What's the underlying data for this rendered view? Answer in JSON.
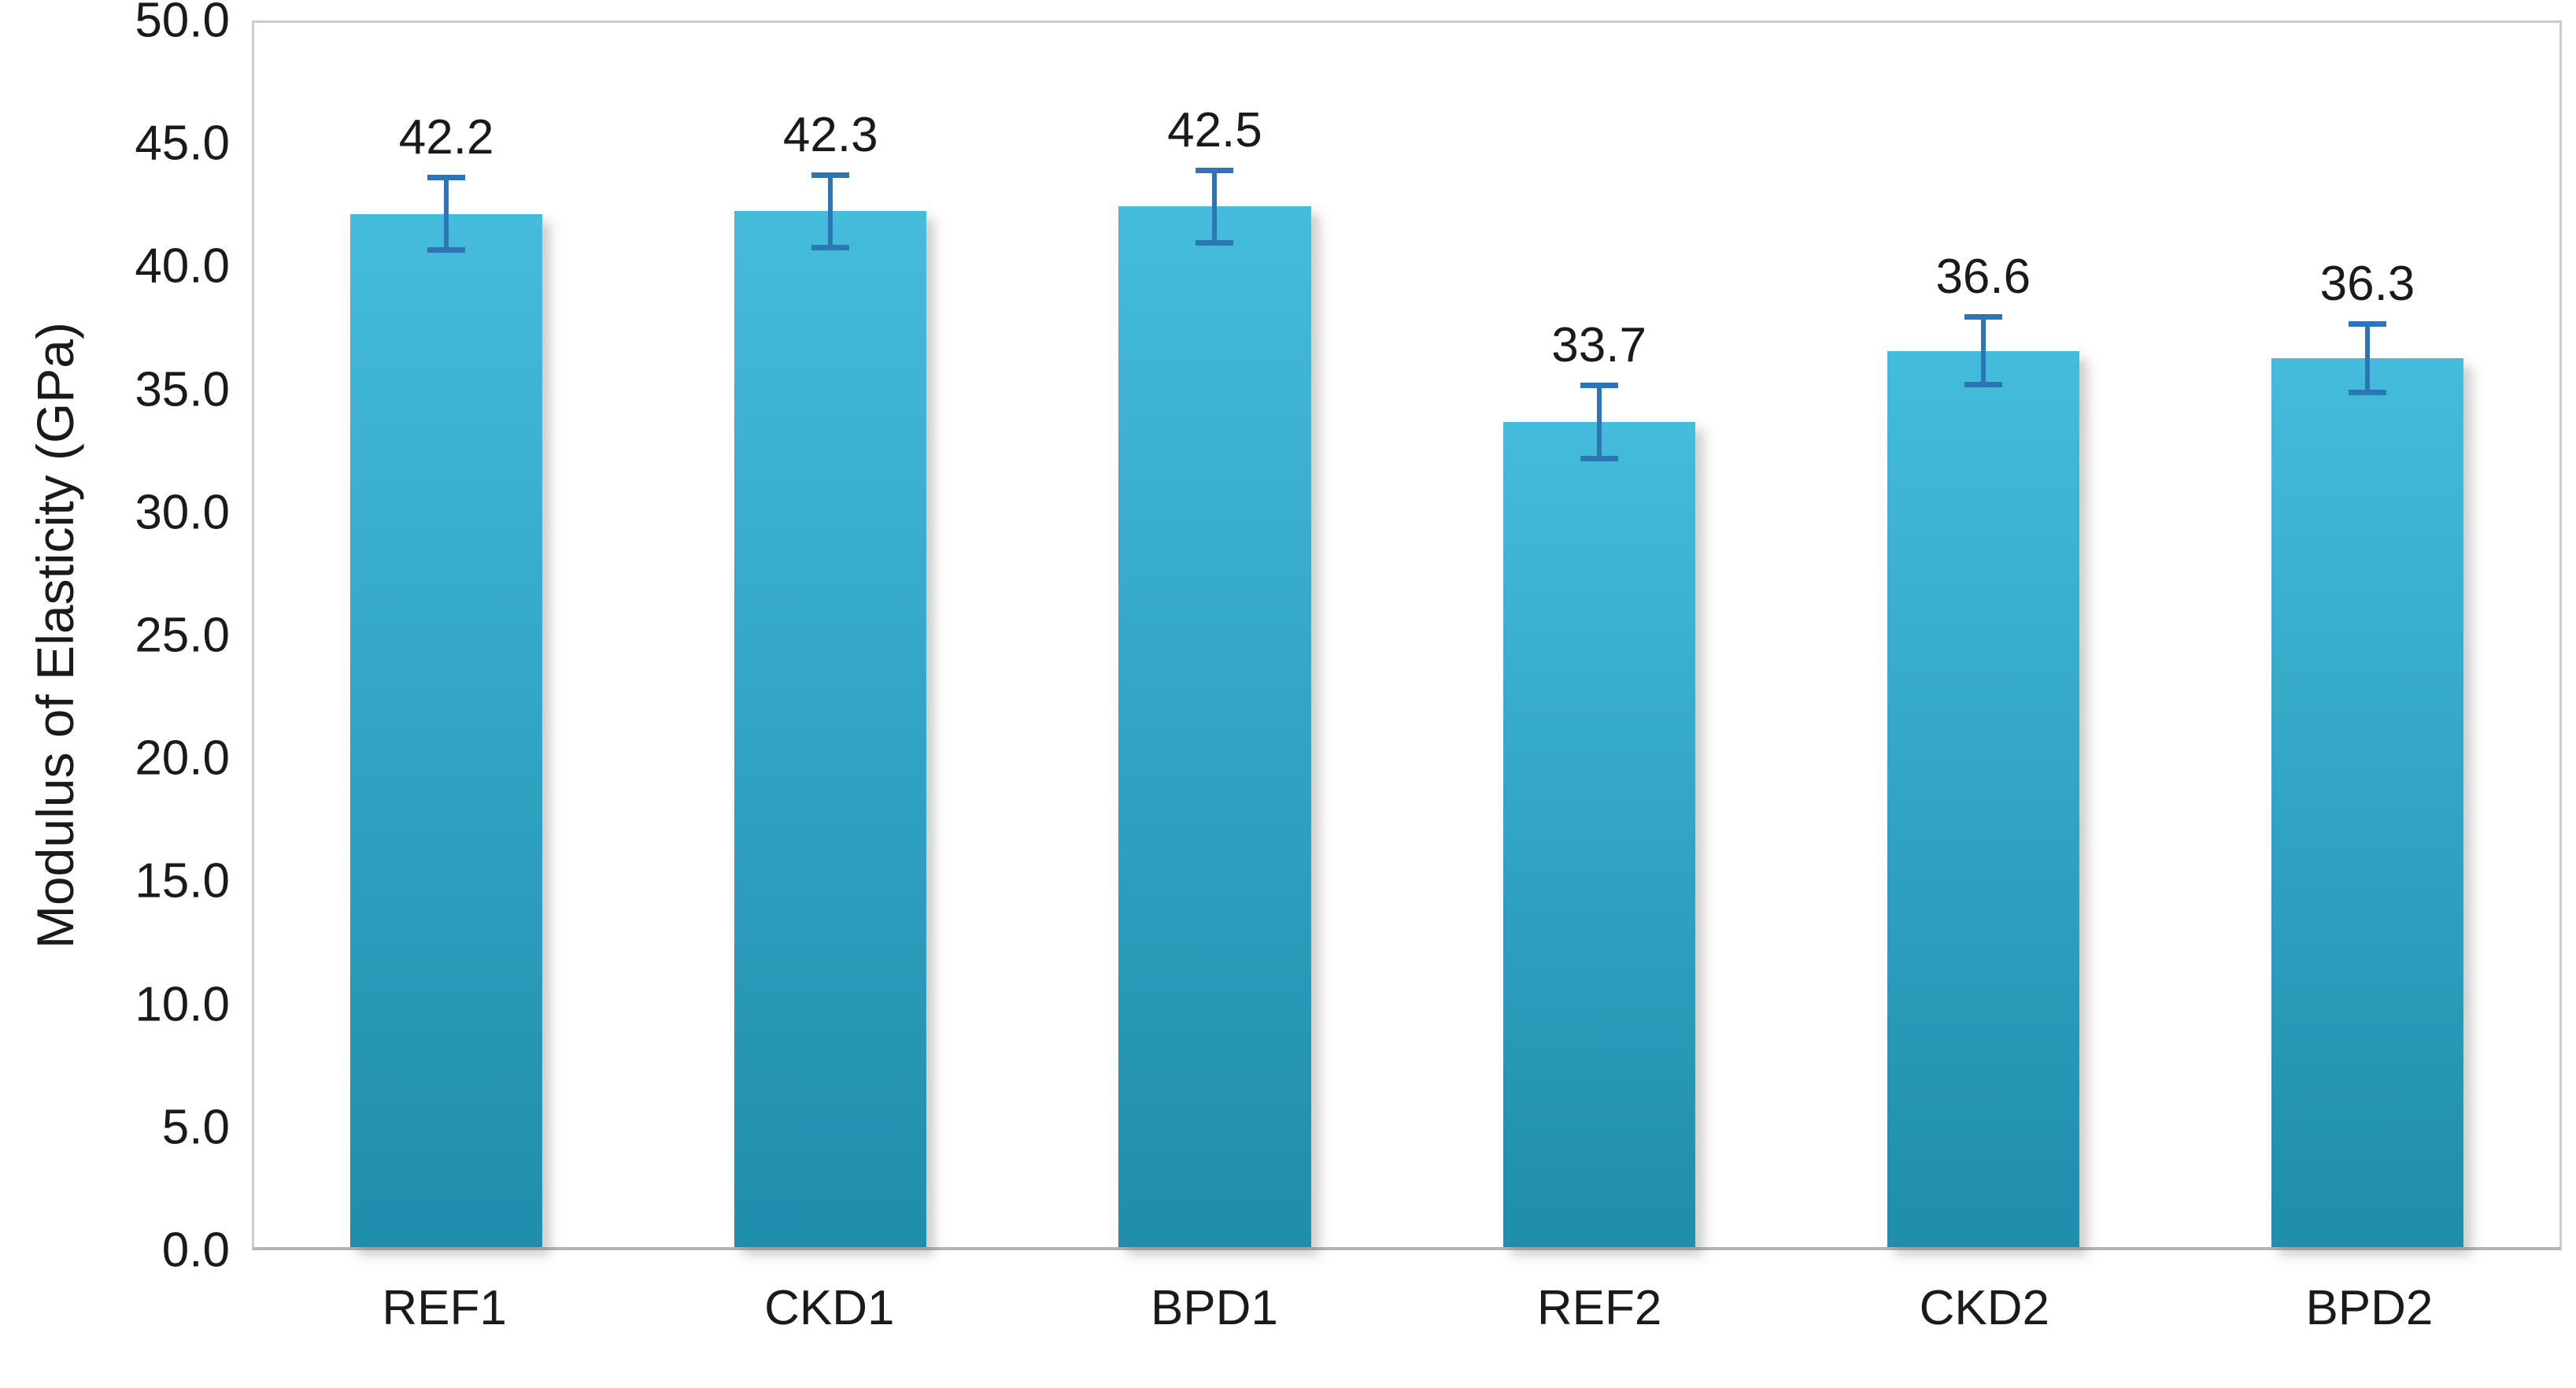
{
  "chart_data": {
    "type": "bar",
    "categories": [
      "REF1",
      "CKD1",
      "BPD1",
      "REF2",
      "CKD2",
      "BPD2"
    ],
    "values": [
      42.2,
      42.3,
      42.5,
      33.7,
      36.6,
      36.3
    ],
    "errors": [
      1.6,
      1.6,
      1.6,
      1.6,
      1.5,
      1.5
    ],
    "data_labels": [
      "42.2",
      "42.3",
      "42.5",
      "33.7",
      "36.6",
      "36.3"
    ],
    "title": "",
    "xlabel": "",
    "ylabel": "Modulus of Elasticity (GPa)",
    "ylim": [
      0,
      50
    ],
    "ytick_values": [
      0,
      5,
      10,
      15,
      20,
      25,
      30,
      35,
      40,
      45,
      50
    ],
    "ytick_labels": [
      "0.0",
      "5.0",
      "10.0",
      "15.0",
      "20.0",
      "25.0",
      "30.0",
      "35.0",
      "40.0",
      "45.0",
      "50.0"
    ],
    "grid": "off",
    "legend": "none",
    "bar_color_top": "#45bcdb",
    "bar_color_bottom": "#1f8dac",
    "error_bar_color": "#2e75b6"
  }
}
